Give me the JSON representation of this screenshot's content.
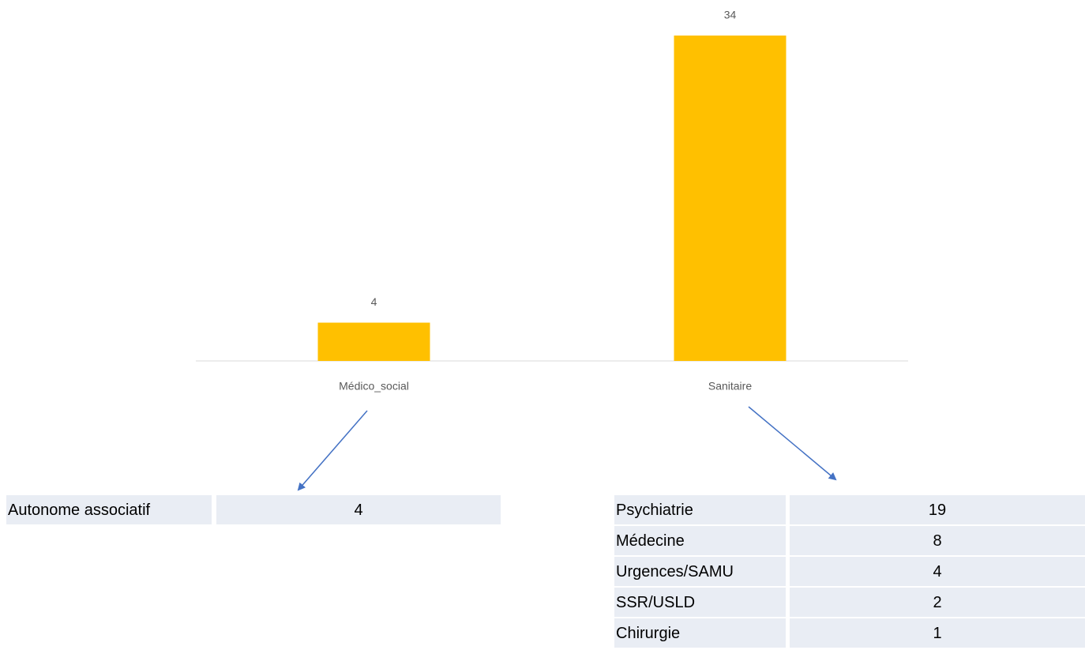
{
  "chart_data": {
    "type": "bar",
    "categories": [
      "Médico_social",
      "Sanitaire"
    ],
    "values": [
      4,
      34
    ],
    "color": "#ffc000"
  },
  "tables": [
    {
      "rows": [
        [
          "Autonome associatif",
          4
        ]
      ]
    },
    {
      "rows": [
        [
          "Psychiatrie",
          19
        ],
        [
          "Médecine",
          8
        ],
        [
          "Urgences/SAMU",
          4
        ],
        [
          "SSR/USLD",
          2
        ],
        [
          "Chirurgie",
          1
        ]
      ]
    }
  ]
}
